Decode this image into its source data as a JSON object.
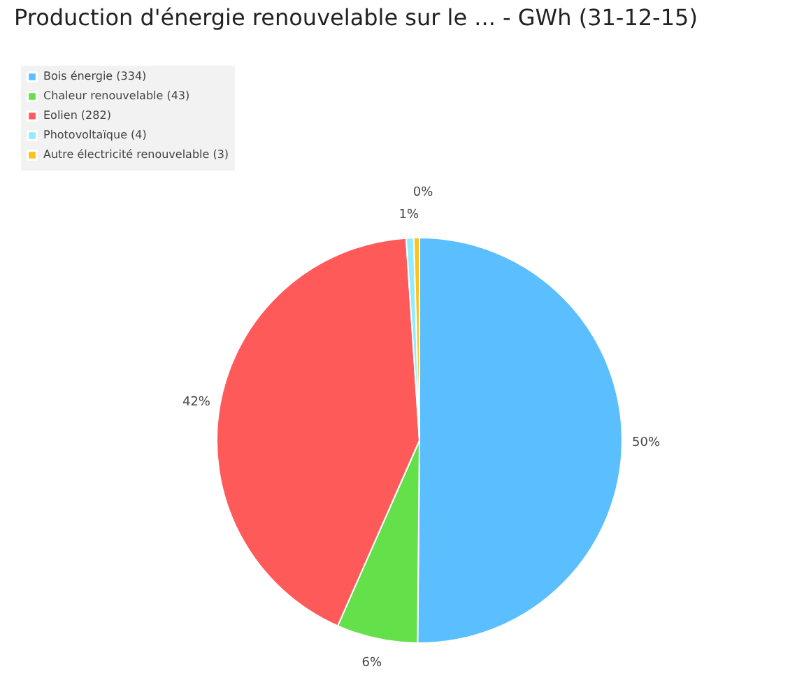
{
  "chart_data": {
    "type": "pie",
    "title": "Production d'énergie renouvelable sur le ... - GWh (31-12-15)",
    "categories": [
      "Bois énergie (334)",
      "Chaleur renouvelable (43)",
      "Eolien (282)",
      "Photovoltaïque (4)",
      "Autre électricité renouvelable (3)"
    ],
    "values": [
      50.15,
      6.46,
      42.34,
      0.6,
      0.45
    ],
    "colors": [
      "#5bbfff",
      "#63e04a",
      "#ff5a5a",
      "#8eeeff",
      "#ffc21a"
    ],
    "value_labels": [
      "50%",
      "6%",
      "42%",
      "1%",
      "0%"
    ],
    "legend": "top left"
  }
}
